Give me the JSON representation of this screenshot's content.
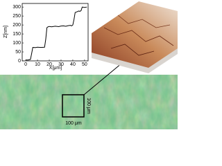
{
  "chart_data": {
    "type": "line",
    "x_label": "X[μm]",
    "y_label": "Z[nm]",
    "x": [
      0,
      2,
      4,
      5,
      6,
      8,
      10,
      12,
      14,
      16,
      17,
      18,
      19,
      20,
      22,
      25,
      28,
      30,
      32,
      34,
      36,
      38,
      39,
      40,
      41,
      42,
      43,
      44,
      45,
      46,
      47,
      48,
      50,
      52
    ],
    "series": [
      {
        "color": "#000000",
        "values": [
          5,
          5,
          8,
          40,
          75,
          74,
          76,
          75,
          75,
          76,
          120,
          185,
          190,
          192,
          190,
          193,
          191,
          194,
          195,
          193,
          196,
          198,
          195,
          200,
          230,
          270,
          272,
          275,
          278,
          276,
          280,
          300,
          298,
          300
        ]
      }
    ],
    "xlim": [
      -3,
      53
    ],
    "xticks": [
      0,
      10,
      20,
      30,
      40,
      50
    ],
    "ylim": [
      0,
      320
    ],
    "yticks": [
      0,
      50,
      100,
      150,
      200,
      250,
      300
    ]
  },
  "scale_labels": {
    "horizontal": "100 μm",
    "vertical": "100 μm"
  }
}
